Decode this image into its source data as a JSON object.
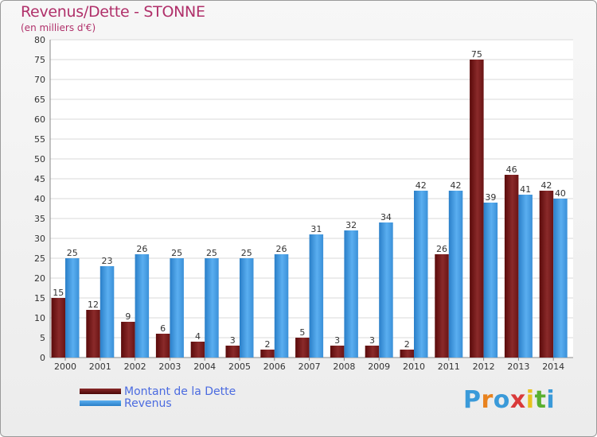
{
  "header": {
    "title": "Revenus/Dette - STONNE",
    "subtitle": "(en milliers d'€)"
  },
  "chart_data": {
    "type": "bar",
    "title": "Revenus/Dette - STONNE",
    "subtitle": "(en milliers d'€)",
    "categories": [
      "2000",
      "2001",
      "2002",
      "2003",
      "2004",
      "2005",
      "2006",
      "2007",
      "2008",
      "2009",
      "2010",
      "2011",
      "2012",
      "2013",
      "2014"
    ],
    "series": [
      {
        "name": "Montant de la Dette",
        "color": "#7a1a1a",
        "values": [
          15,
          12,
          9,
          6,
          4,
          3,
          2,
          5,
          3,
          3,
          2,
          26,
          75,
          46,
          42
        ]
      },
      {
        "name": "Revenus",
        "color": "#3d9be8",
        "values": [
          25,
          23,
          26,
          25,
          25,
          25,
          26,
          31,
          32,
          34,
          42,
          42,
          39,
          41,
          40
        ]
      }
    ],
    "ylim": [
      0,
      80
    ],
    "yticks": [
      0,
      5,
      10,
      15,
      20,
      25,
      30,
      35,
      40,
      45,
      50,
      55,
      60,
      65,
      70,
      75,
      80
    ],
    "grid": true,
    "legend": "bottom-left"
  },
  "legend": {
    "items": [
      {
        "label": "Montant de la Dette",
        "color": "#5a0a0a"
      },
      {
        "label": "Revenus",
        "color": "#3d9be8"
      }
    ]
  },
  "logo": {
    "letters": [
      "P",
      "r",
      "o",
      "x",
      "i",
      "t",
      "i"
    ],
    "colors": [
      "#3a9ad9",
      "#e8821e",
      "#3a9ad9",
      "#d93a3a",
      "#e8c21e",
      "#5ab030",
      "#3a9ad9"
    ]
  }
}
